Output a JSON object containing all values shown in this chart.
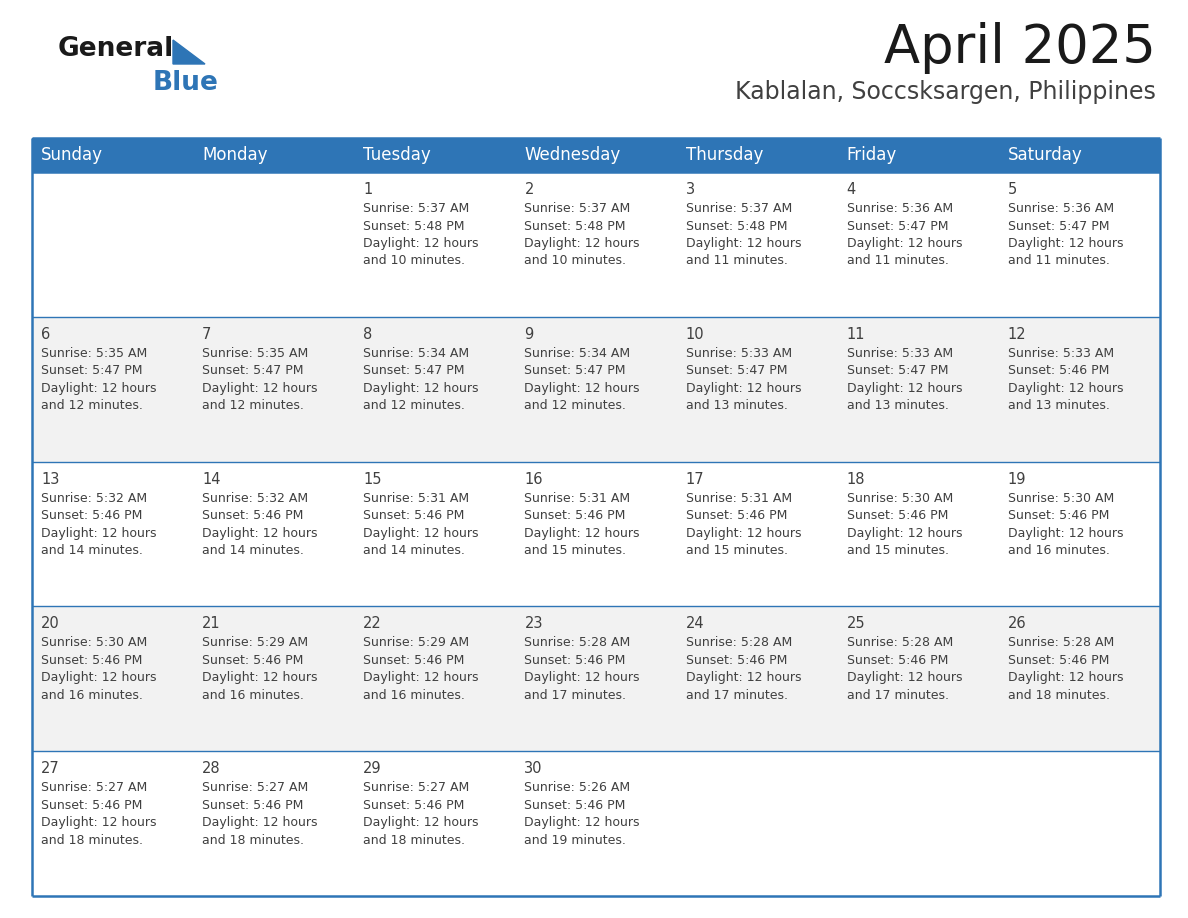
{
  "title": "April 2025",
  "subtitle": "Kablalan, Soccsksargen, Philippines",
  "header_bg_color": "#2E75B6",
  "header_text_color": "#FFFFFF",
  "cell_bg_even": "#F2F2F2",
  "cell_bg_odd": "#FFFFFF",
  "border_color": "#2E75B6",
  "text_color": "#404040",
  "days_of_week": [
    "Sunday",
    "Monday",
    "Tuesday",
    "Wednesday",
    "Thursday",
    "Friday",
    "Saturday"
  ],
  "calendar_data": [
    [
      "",
      "",
      "1\nSunrise: 5:37 AM\nSunset: 5:48 PM\nDaylight: 12 hours\nand 10 minutes.",
      "2\nSunrise: 5:37 AM\nSunset: 5:48 PM\nDaylight: 12 hours\nand 10 minutes.",
      "3\nSunrise: 5:37 AM\nSunset: 5:48 PM\nDaylight: 12 hours\nand 11 minutes.",
      "4\nSunrise: 5:36 AM\nSunset: 5:47 PM\nDaylight: 12 hours\nand 11 minutes.",
      "5\nSunrise: 5:36 AM\nSunset: 5:47 PM\nDaylight: 12 hours\nand 11 minutes."
    ],
    [
      "6\nSunrise: 5:35 AM\nSunset: 5:47 PM\nDaylight: 12 hours\nand 12 minutes.",
      "7\nSunrise: 5:35 AM\nSunset: 5:47 PM\nDaylight: 12 hours\nand 12 minutes.",
      "8\nSunrise: 5:34 AM\nSunset: 5:47 PM\nDaylight: 12 hours\nand 12 minutes.",
      "9\nSunrise: 5:34 AM\nSunset: 5:47 PM\nDaylight: 12 hours\nand 12 minutes.",
      "10\nSunrise: 5:33 AM\nSunset: 5:47 PM\nDaylight: 12 hours\nand 13 minutes.",
      "11\nSunrise: 5:33 AM\nSunset: 5:47 PM\nDaylight: 12 hours\nand 13 minutes.",
      "12\nSunrise: 5:33 AM\nSunset: 5:46 PM\nDaylight: 12 hours\nand 13 minutes."
    ],
    [
      "13\nSunrise: 5:32 AM\nSunset: 5:46 PM\nDaylight: 12 hours\nand 14 minutes.",
      "14\nSunrise: 5:32 AM\nSunset: 5:46 PM\nDaylight: 12 hours\nand 14 minutes.",
      "15\nSunrise: 5:31 AM\nSunset: 5:46 PM\nDaylight: 12 hours\nand 14 minutes.",
      "16\nSunrise: 5:31 AM\nSunset: 5:46 PM\nDaylight: 12 hours\nand 15 minutes.",
      "17\nSunrise: 5:31 AM\nSunset: 5:46 PM\nDaylight: 12 hours\nand 15 minutes.",
      "18\nSunrise: 5:30 AM\nSunset: 5:46 PM\nDaylight: 12 hours\nand 15 minutes.",
      "19\nSunrise: 5:30 AM\nSunset: 5:46 PM\nDaylight: 12 hours\nand 16 minutes."
    ],
    [
      "20\nSunrise: 5:30 AM\nSunset: 5:46 PM\nDaylight: 12 hours\nand 16 minutes.",
      "21\nSunrise: 5:29 AM\nSunset: 5:46 PM\nDaylight: 12 hours\nand 16 minutes.",
      "22\nSunrise: 5:29 AM\nSunset: 5:46 PM\nDaylight: 12 hours\nand 16 minutes.",
      "23\nSunrise: 5:28 AM\nSunset: 5:46 PM\nDaylight: 12 hours\nand 17 minutes.",
      "24\nSunrise: 5:28 AM\nSunset: 5:46 PM\nDaylight: 12 hours\nand 17 minutes.",
      "25\nSunrise: 5:28 AM\nSunset: 5:46 PM\nDaylight: 12 hours\nand 17 minutes.",
      "26\nSunrise: 5:28 AM\nSunset: 5:46 PM\nDaylight: 12 hours\nand 18 minutes."
    ],
    [
      "27\nSunrise: 5:27 AM\nSunset: 5:46 PM\nDaylight: 12 hours\nand 18 minutes.",
      "28\nSunrise: 5:27 AM\nSunset: 5:46 PM\nDaylight: 12 hours\nand 18 minutes.",
      "29\nSunrise: 5:27 AM\nSunset: 5:46 PM\nDaylight: 12 hours\nand 18 minutes.",
      "30\nSunrise: 5:26 AM\nSunset: 5:46 PM\nDaylight: 12 hours\nand 19 minutes.",
      "",
      "",
      ""
    ]
  ],
  "logo_text_general": "General",
  "logo_text_blue": "Blue",
  "logo_triangle_color": "#2E75B6",
  "title_fontsize": 38,
  "subtitle_fontsize": 17,
  "header_fontsize": 12,
  "cell_day_fontsize": 10.5,
  "cell_info_fontsize": 9,
  "figsize": [
    11.88,
    9.18
  ],
  "dpi": 100
}
